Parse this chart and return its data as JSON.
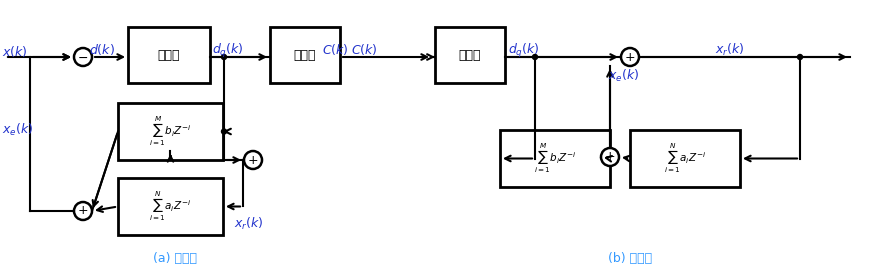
{
  "bg": "#ffffff",
  "lc": "#000000",
  "ic": "#2233cc",
  "cc": "#3399ff",
  "caption_a": "(a) 编码器",
  "caption_b": "(b) 译码器",
  "label_xk": "$x(k)$",
  "label_dk": "$d(k)$",
  "label_dqk_enc": "$d_q(k)$",
  "label_Ck1": "$C(k)$",
  "label_Ck2": "$C(k)$",
  "label_dqk_dec": "$d_q(k)$",
  "label_xrk_dec": "$x_r(k)$",
  "label_xek_enc": "$x_e(k)$",
  "label_xrk_enc": "$x_r(k)$",
  "label_xek_dec": "$x_e(k)$",
  "label_quant": "量化器",
  "label_enc": "编码器",
  "label_dec": "解码器",
  "label_bi": "$\\sum_{i=1}^{M}b_iZ^{-i}$",
  "label_ai_enc": "$\\sum_{i=1}^{N}a_iZ^{-i}$",
  "label_bi_dec": "$\\sum_{i=1}^{M}b_iZ^{-i}$",
  "label_ai_dec": "$\\sum_{i=1}^{N}a_iZ^{-i}$"
}
